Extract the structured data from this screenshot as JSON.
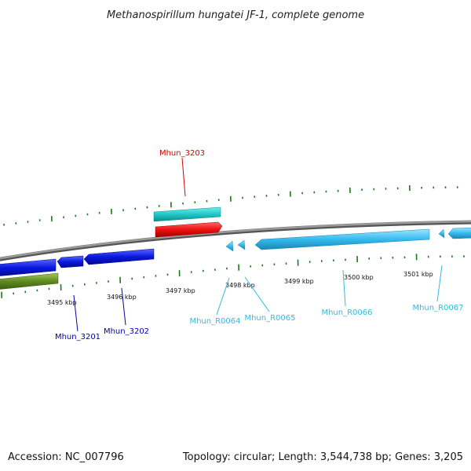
{
  "title": "Methanospirillum hungatei JF-1, complete genome",
  "footer": {
    "accession": "Accession: NC_007796",
    "summary": "Topology: circular; Length: 3,544,738 bp; Genes: 3,205"
  },
  "colors": {
    "backbone": "#7a7a7a",
    "tick_mark": "#1a7a1a",
    "forward_cyan": "#20c8c8",
    "forward_red": "#ee1111",
    "reverse_blue": "#0a18e0",
    "reverse_olive": "#5f8a20",
    "rna_lightblue": "#33bbee",
    "label_red": "#dd0000",
    "label_blue": "#0000aa",
    "label_lightblue": "#33bbdd"
  },
  "axis_labels": [
    "3495 kbp",
    "3496 kbp",
    "3497 kbp",
    "3498 kbp",
    "3499 kbp",
    "3500 kbp",
    "3501 kbp"
  ],
  "gene_labels": {
    "mhun_3203": "Mhun_3203",
    "mhun_3201": "Mhun_3201",
    "mhun_3202": "Mhun_3202",
    "mhun_r0064": "Mhun_R0064",
    "mhun_r0065": "Mhun_R0065",
    "mhun_r0066": "Mhun_R0066",
    "mhun_r0067": "Mhun_R0067"
  }
}
